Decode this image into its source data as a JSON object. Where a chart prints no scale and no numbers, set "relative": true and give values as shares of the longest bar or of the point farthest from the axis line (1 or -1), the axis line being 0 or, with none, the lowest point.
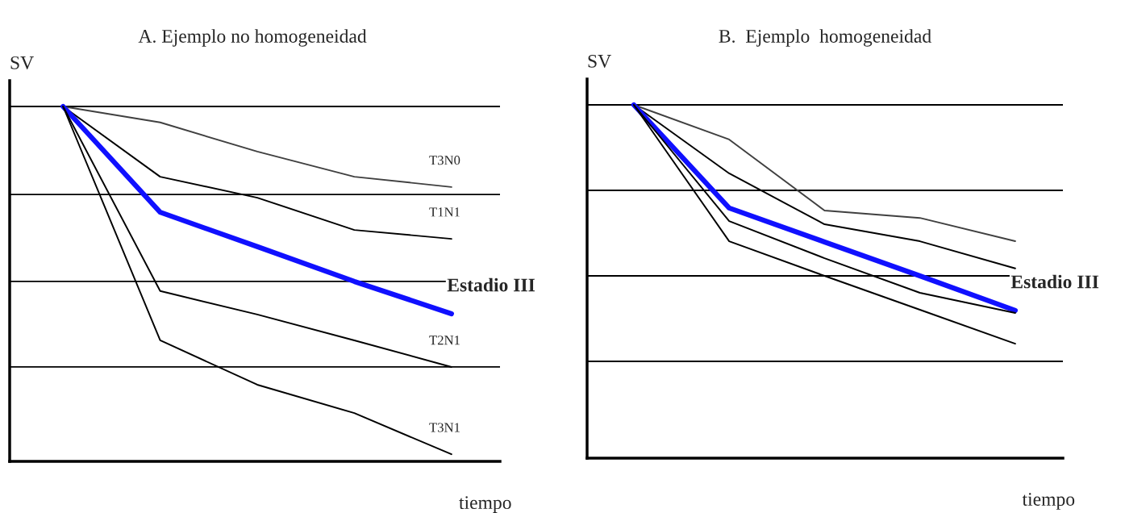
{
  "chart_data": [
    {
      "type": "line",
      "title": "A. Ejemplo no homogeneidad ",
      "xlabel": "tiempo",
      "ylabel": "SV",
      "relative": true,
      "categories": [
        null,
        null,
        null,
        null,
        null
      ],
      "series": [
        {
          "name": "T3N0",
          "color": "#404040",
          "values": [
            1,
            0.955,
            0.873,
            0.802,
            0.773
          ]
        },
        {
          "name": "T1N1",
          "color": "#000000",
          "values": [
            1,
            0.802,
            0.743,
            0.652,
            0.627
          ]
        },
        {
          "name": "Estadio III",
          "color": "#1010ff",
          "values": [
            1,
            0.702,
            0.605,
            0.507,
            0.416
          ]
        },
        {
          "name": "T2N1",
          "color": "#000000",
          "values": [
            1,
            0.48,
            0.414,
            0.341,
            0.266
          ]
        },
        {
          "name": "T3N1",
          "color": "#000000",
          "values": [
            1,
            0.341,
            0.216,
            0.136,
            0.02
          ]
        }
      ],
      "ref_lines": [
        {
          "axis": "y",
          "value": 1,
          "color": "#000000"
        },
        {
          "axis": "y",
          "value": 0.752,
          "color": "#000000"
        },
        {
          "axis": "y",
          "value": 0.507,
          "color": "#000000"
        },
        {
          "axis": "y",
          "value": 0.266,
          "color": "#000000"
        }
      ]
    },
    {
      "type": "line",
      "title": "B.  Ejemplo  homogeneidad",
      "xlabel": "tiempo",
      "ylabel": "SV",
      "relative": true,
      "categories": [
        null,
        null,
        null,
        null,
        null
      ],
      "series": [
        {
          "color": "#404040",
          "values": [
            1,
            0.902,
            0.701,
            0.68,
            0.614
          ]
        },
        {
          "color": "#000000",
          "values": [
            1,
            0.806,
            0.662,
            0.614,
            0.537
          ]
        },
        {
          "name": "Estadio III",
          "color": "#1010ff",
          "values": [
            1,
            0.708,
            0.612,
            0.516,
            0.418
          ]
        },
        {
          "color": "#000000",
          "values": [
            1,
            0.671,
            0.566,
            0.468,
            0.411
          ]
        },
        {
          "color": "#000000",
          "values": [
            1,
            0.614,
            0.516,
            0.42,
            0.324
          ]
        }
      ],
      "ref_lines": [
        {
          "axis": "y",
          "value": 1,
          "color": "#000000"
        },
        {
          "axis": "y",
          "value": 0.758,
          "color": "#000000"
        },
        {
          "axis": "y",
          "value": 0.516,
          "color": "#000000"
        },
        {
          "axis": "y",
          "value": 0.274,
          "color": "#000000"
        }
      ]
    }
  ]
}
